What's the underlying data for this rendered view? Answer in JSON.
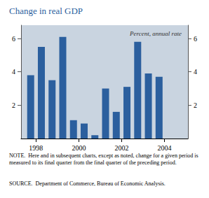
{
  "chart_data": {
    "type": "bar",
    "title": "Change in real GDP",
    "subtitle": "Percent, annual rate",
    "x": [
      1997.75,
      1998.25,
      1998.75,
      1999.25,
      1999.75,
      2000.25,
      2000.75,
      2001.25,
      2001.75,
      2002.25,
      2002.75,
      2003.25,
      2003.75
    ],
    "values": [
      3.8,
      5.5,
      3.5,
      6.1,
      1.1,
      0.9,
      0.2,
      3.0,
      1.6,
      3.1,
      5.8,
      3.9,
      3.7
    ],
    "color": "#2B5F9E",
    "xlim": [
      1997.3,
      2005.1
    ],
    "xticks": [
      1998,
      2000,
      2002,
      2004
    ],
    "ylim": [
      0,
      6.8
    ],
    "yticks": [
      2,
      4,
      6
    ],
    "grid": false,
    "annotations": [
      "NOTE.  Here and in subsequent charts, except as noted, change for a given period is measured to its final quarter from the final quarter of the preceding period.",
      "SOURCE.  Department of Commerce, Bureau of Economic Analysis."
    ]
  }
}
